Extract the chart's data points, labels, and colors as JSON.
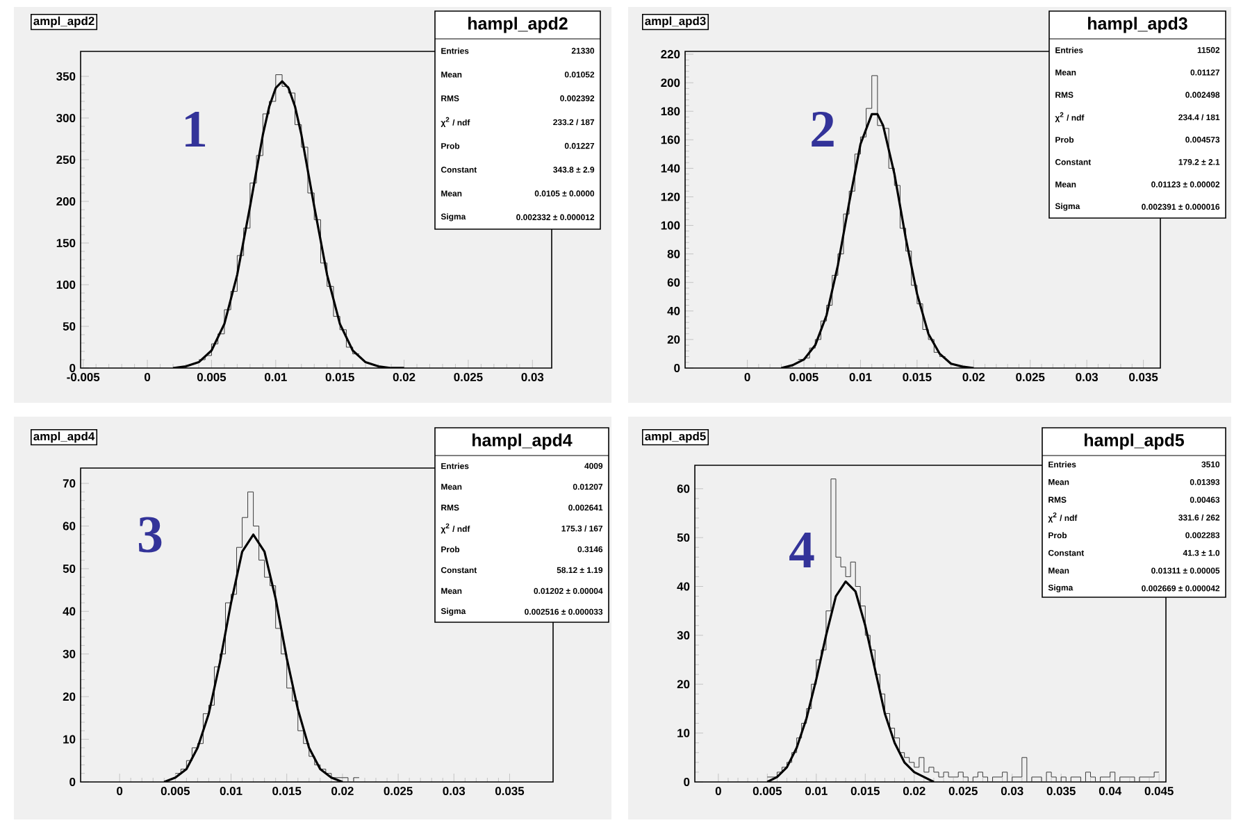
{
  "chart_data": [
    {
      "type": "histogram",
      "title": "ampl_apd2",
      "subtitle": "hampl_apd2",
      "color": "#3a3a3a",
      "bins": [
        0.004,
        0.0045,
        0.005,
        0.0055,
        0.006,
        0.0065,
        0.007,
        0.0075,
        0.008,
        0.0085,
        0.009,
        0.0095,
        0.01,
        0.0105,
        0.011,
        0.0115,
        0.012,
        0.0125,
        0.013,
        0.0135,
        0.014,
        0.0145,
        0.015,
        0.0155,
        0.016,
        0.0165
      ],
      "values": [
        10,
        15,
        29,
        41,
        70,
        92,
        135,
        168,
        222,
        255,
        305,
        320,
        352,
        338,
        330,
        292,
        265,
        210,
        178,
        126,
        98,
        62,
        46,
        25,
        17
      ],
      "series": [
        {
          "type": "line",
          "color": "#000000",
          "x": [
            0.002,
            0.003,
            0.004,
            0.005,
            0.006,
            0.007,
            0.008,
            0.009,
            0.0095,
            0.01,
            0.0105,
            0.011,
            0.0115,
            0.012,
            0.013,
            0.014,
            0.015,
            0.016,
            0.017,
            0.018,
            0.019,
            0.02
          ],
          "values": [
            0,
            2,
            7,
            21,
            53,
            112,
            194,
            280,
            314,
            336,
            344,
            336,
            314,
            280,
            194,
            112,
            53,
            21,
            7,
            2,
            0,
            0
          ]
        }
      ],
      "xlim": [
        -0.0052,
        0.0315
      ],
      "ylim": [
        0,
        380
      ],
      "xticks": [
        -0.005,
        0,
        0.005,
        0.01,
        0.015,
        0.02,
        0.025,
        0.03
      ],
      "yticks": [
        0,
        50,
        100,
        150,
        200,
        250,
        300,
        350
      ],
      "annotations": [
        "1",
        "Entries",
        "21330",
        "Mean",
        "0.01052",
        "RMS",
        "0.002392",
        "χ$^{2}$ / ndf",
        "233.2 / 187",
        "Prob",
        "0.01227",
        "Constant",
        "343.8 ± 2.9",
        "Mean",
        "0.0105 ± 0.0000",
        "Sigma",
        "0.002332 ± 0.000012"
      ]
    },
    {
      "type": "histogram",
      "title": "ampl_apd3",
      "subtitle": "hampl_apd3",
      "color": "#3a3a3a",
      "bins": [
        0.0045,
        0.005,
        0.0055,
        0.006,
        0.0065,
        0.007,
        0.0075,
        0.008,
        0.0085,
        0.009,
        0.0095,
        0.01,
        0.0105,
        0.011,
        0.0115,
        0.012,
        0.0125,
        0.013,
        0.0135,
        0.014,
        0.0145,
        0.015,
        0.0155,
        0.016,
        0.0165,
        0.017,
        0.0175
      ],
      "values": [
        6,
        7,
        14,
        20,
        33,
        44,
        65,
        80,
        108,
        124,
        150,
        162,
        182,
        205,
        170,
        168,
        140,
        128,
        98,
        82,
        58,
        45,
        27,
        20,
        11,
        8
      ],
      "series": [
        {
          "type": "line",
          "color": "#000000",
          "x": [
            0.003,
            0.004,
            0.005,
            0.006,
            0.007,
            0.008,
            0.009,
            0.01,
            0.011,
            0.0115,
            0.012,
            0.013,
            0.014,
            0.015,
            0.016,
            0.017,
            0.018,
            0.019,
            0.02
          ],
          "values": [
            0,
            2,
            6,
            16,
            37,
            72,
            116,
            157,
            178,
            178,
            170,
            136,
            91,
            52,
            24,
            10,
            3,
            1,
            0
          ]
        }
      ],
      "xlim": [
        -0.0055,
        0.0365
      ],
      "ylim": [
        0,
        222
      ],
      "xticks": [
        0,
        0.005,
        0.01,
        0.015,
        0.02,
        0.025,
        0.03,
        0.035
      ],
      "yticks": [
        0,
        20,
        40,
        60,
        80,
        100,
        120,
        140,
        160,
        180,
        200,
        220
      ],
      "annotations": [
        "2",
        "Entries",
        "11502",
        "Mean",
        "0.01127",
        "RMS",
        "0.002498",
        "χ$^{2}$ / ndf",
        "234.4 / 181",
        "Prob",
        "0.004573",
        "Constant",
        "179.2 ± 2.1",
        "Mean",
        "0.01123 ± 0.00002",
        "Sigma",
        "0.002391 ± 0.000016"
      ]
    },
    {
      "type": "histogram",
      "title": "ampl_apd4",
      "subtitle": "hampl_apd4",
      "color": "#3a3a3a",
      "bins": [
        0.005,
        0.0055,
        0.006,
        0.0065,
        0.007,
        0.0075,
        0.008,
        0.0085,
        0.009,
        0.0095,
        0.01,
        0.0105,
        0.011,
        0.0115,
        0.012,
        0.0125,
        0.013,
        0.0135,
        0.014,
        0.0145,
        0.015,
        0.0155,
        0.016,
        0.0165,
        0.017,
        0.0175,
        0.018,
        0.0185,
        0.019,
        0.0195,
        0.02,
        0.0205,
        0.021,
        0.0215
      ],
      "values": [
        2,
        3,
        5,
        8,
        9,
        16,
        18,
        27,
        30,
        42,
        44,
        55,
        62,
        68,
        60,
        52,
        48,
        46,
        36,
        30,
        22,
        19,
        12,
        9,
        6,
        4,
        3,
        2,
        1,
        1,
        1,
        0,
        1
      ],
      "series": [
        {
          "type": "line",
          "color": "#000000",
          "x": [
            0.004,
            0.005,
            0.006,
            0.007,
            0.008,
            0.009,
            0.01,
            0.011,
            0.012,
            0.013,
            0.014,
            0.015,
            0.016,
            0.017,
            0.018,
            0.019,
            0.02
          ],
          "values": [
            0,
            1,
            3,
            8,
            16,
            28,
            42,
            54,
            58,
            54,
            43,
            29,
            17,
            8,
            3,
            1,
            0
          ]
        }
      ],
      "xlim": [
        -0.0035,
        0.0389
      ],
      "ylim": [
        0,
        73.6
      ],
      "xticks": [
        0,
        0.005,
        0.01,
        0.015,
        0.02,
        0.025,
        0.03,
        0.035
      ],
      "yticks": [
        0,
        10,
        20,
        30,
        40,
        50,
        60,
        70
      ],
      "annotations": [
        "3",
        "Entries",
        "4009",
        "Mean",
        "0.01207",
        "RMS",
        "0.002641",
        "χ$^{2}$ / ndf",
        "175.3 / 167",
        "Prob",
        "0.3146",
        "Constant",
        "58.12 ± 1.19",
        "Mean",
        "0.01202 ± 0.00004",
        "Sigma",
        "0.002516 ± 0.000033"
      ]
    },
    {
      "type": "histogram",
      "title": "ampl_apd5",
      "subtitle": "hampl_apd5",
      "color": "#3a3a3a",
      "bins": [
        0.005,
        0.0055,
        0.006,
        0.0065,
        0.007,
        0.0075,
        0.008,
        0.0085,
        0.009,
        0.0095,
        0.01,
        0.0105,
        0.011,
        0.0115,
        0.012,
        0.0125,
        0.013,
        0.0135,
        0.014,
        0.0145,
        0.015,
        0.0155,
        0.016,
        0.0165,
        0.017,
        0.0175,
        0.018,
        0.0185,
        0.019,
        0.0195,
        0.02,
        0.0205,
        0.021,
        0.0215,
        0.022,
        0.0225,
        0.023,
        0.0235,
        0.024,
        0.0245,
        0.025,
        0.0255,
        0.026,
        0.0265,
        0.027,
        0.0275,
        0.028,
        0.0285,
        0.029,
        0.0295,
        0.03,
        0.0305,
        0.031,
        0.0315,
        0.032,
        0.0325,
        0.033,
        0.0335,
        0.034,
        0.0345,
        0.035,
        0.0355,
        0.036,
        0.0365,
        0.037,
        0.0375,
        0.038,
        0.0385,
        0.039,
        0.0395,
        0.04,
        0.0405,
        0.041,
        0.0415,
        0.042,
        0.0425,
        0.043,
        0.0435,
        0.044,
        0.0445,
        0.045
      ],
      "values": [
        1,
        1,
        2,
        3,
        4,
        6,
        9,
        12,
        15,
        20,
        25,
        27,
        35,
        62,
        46,
        44,
        42,
        45,
        40,
        36,
        30,
        27,
        22,
        18,
        14,
        11,
        9,
        6,
        5,
        4,
        3,
        5,
        2,
        3,
        2,
        1,
        2,
        1,
        1,
        2,
        1,
        0,
        1,
        2,
        1,
        0,
        1,
        1,
        2,
        0,
        1,
        1,
        5,
        0,
        1,
        1,
        0,
        2,
        1,
        0,
        1,
        0,
        1,
        1,
        0,
        2,
        1,
        0,
        1,
        1,
        2,
        0,
        1,
        1,
        1,
        0,
        1,
        1,
        1,
        2
      ],
      "series": [
        {
          "type": "line",
          "color": "#000000",
          "x": [
            0.005,
            0.006,
            0.007,
            0.008,
            0.009,
            0.01,
            0.011,
            0.012,
            0.013,
            0.014,
            0.015,
            0.016,
            0.017,
            0.018,
            0.019,
            0.02,
            0.021,
            0.022
          ],
          "values": [
            0,
            1,
            3,
            7,
            13,
            21,
            30,
            38,
            41,
            39,
            32,
            23,
            14,
            8,
            4,
            2,
            1,
            0
          ]
        }
      ],
      "xlim": [
        -0.0024,
        0.0457
      ],
      "ylim": [
        0,
        64.8
      ],
      "xticks": [
        0,
        0.005,
        0.01,
        0.015,
        0.02,
        0.025,
        0.03,
        0.035,
        0.04,
        0.045
      ],
      "yticks": [
        0,
        10,
        20,
        30,
        40,
        50,
        60
      ],
      "annotations": [
        "4",
        "Entries",
        "3510",
        "Mean",
        "0.01393",
        "RMS",
        "0.00463",
        "χ$^{2}$ / ndf",
        "331.6 / 262",
        "Prob",
        "0.002283",
        "Constant",
        "41.3 ± 1.0",
        "Mean",
        "0.01311 ± 0.00005",
        "Sigma",
        "0.002669 ± 0.000042"
      ]
    }
  ]
}
